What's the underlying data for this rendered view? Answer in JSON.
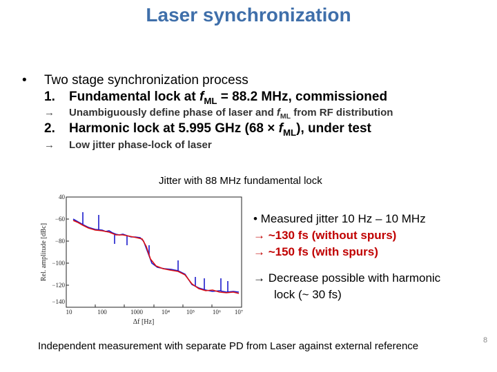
{
  "title": "Laser synchronization",
  "bullet": {
    "symbol": "•",
    "text": "Two stage synchronization process"
  },
  "steps": [
    {
      "num": "1.",
      "pre": "Fundamental lock at ",
      "f": "f",
      "sub": "ML",
      "post": " = 88.2 MHz, commissioned",
      "arrow": "→",
      "sub_pre": "Unambiguously define phase of laser and ",
      "sub_f": "f",
      "sub_sub": "ML",
      "sub_post": " from RF distribution"
    },
    {
      "num": "2.",
      "pre": "Harmonic lock at 5.995 GHz (68 × ",
      "f": "f",
      "sub": "ML",
      "post": "), under test",
      "arrow": "→",
      "sub_text": "Low jitter phase-lock of laser"
    }
  ],
  "plot": {
    "caption": "Jitter with 88 MHz fundamental lock",
    "ylabel": "Rel. amplitude [dBc]",
    "xlabel": "Δf [Hz]",
    "yticks": [
      "40",
      "−60",
      "−80",
      "−100",
      "−120",
      "−140"
    ],
    "xticks": [
      "10",
      "100",
      "1000",
      "10⁴",
      "10⁵",
      "10⁶",
      "10⁷"
    ],
    "colors": {
      "blue": "#1a1acc",
      "red": "#dd1111"
    }
  },
  "notes": {
    "b1": "•  Measured jitter 10 Hz – 10 MHz",
    "b2": "→ ~130 fs (without spurs)",
    "b3": "→ ~150 fs (with spurs)",
    "b4a": "→ Decrease possible with harmonic",
    "b4b": "lock (~ 30 fs)"
  },
  "footer": "Independent measurement with separate PD from Laser against external reference",
  "page_number": "8"
}
